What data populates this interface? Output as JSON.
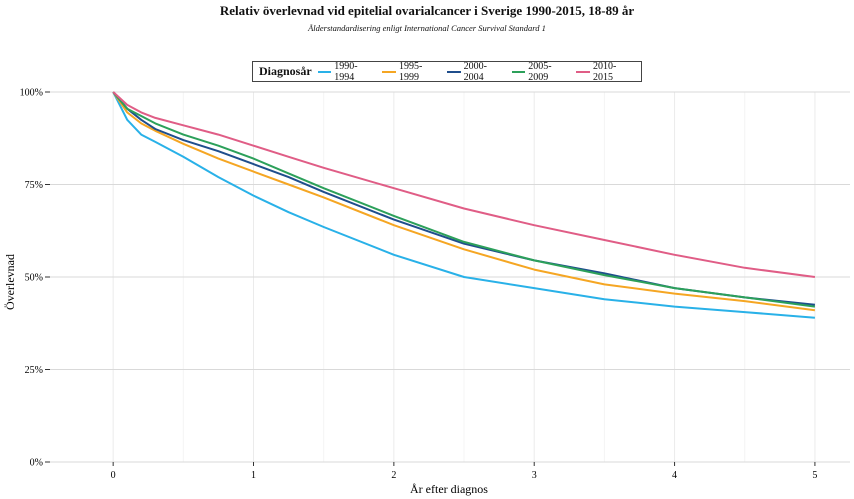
{
  "chart_data": {
    "type": "line",
    "title": "Relativ överlevnad vid epitelial ovarialcancer i Sverige 1990-2015, 18-89 år",
    "subtitle": "Ålderstandardisering enligt International Cancer Survival Standard 1",
    "xlabel": "År efter diagnos",
    "ylabel": "Överlevnad",
    "xlim": [
      -0.45,
      5.25
    ],
    "ylim": [
      0,
      1
    ],
    "x_ticks": [
      0,
      1,
      2,
      3,
      4,
      5
    ],
    "x_tick_labels": [
      "0",
      "1",
      "2",
      "3",
      "4",
      "5"
    ],
    "y_ticks": [
      0,
      0.25,
      0.5,
      0.75,
      1.0
    ],
    "y_tick_labels": [
      "0%",
      "25%",
      "50%",
      "75%",
      "100%"
    ],
    "grid": true,
    "legend_title": "Diagnosår",
    "legend_position": "top",
    "x": [
      0,
      0.1,
      0.2,
      0.3,
      0.5,
      0.75,
      1,
      1.25,
      1.5,
      2,
      2.5,
      3,
      3.5,
      4,
      4.5,
      5
    ],
    "series": [
      {
        "name": "1990-1994",
        "color": "#29b1e8",
        "values": [
          1.0,
          0.925,
          0.885,
          0.865,
          0.825,
          0.77,
          0.72,
          0.675,
          0.635,
          0.56,
          0.5,
          0.47,
          0.44,
          0.42,
          0.405,
          0.39
        ]
      },
      {
        "name": "1995-1999",
        "color": "#f5a623",
        "values": [
          1.0,
          0.945,
          0.915,
          0.895,
          0.86,
          0.82,
          0.785,
          0.75,
          0.715,
          0.64,
          0.575,
          0.52,
          0.48,
          0.455,
          0.435,
          0.41
        ]
      },
      {
        "name": "2000-2004",
        "color": "#1f4e8c",
        "values": [
          1.0,
          0.955,
          0.925,
          0.9,
          0.87,
          0.84,
          0.805,
          0.77,
          0.73,
          0.655,
          0.59,
          0.545,
          0.51,
          0.47,
          0.445,
          0.425
        ]
      },
      {
        "name": "2005-2009",
        "color": "#2ca05a",
        "values": [
          1.0,
          0.955,
          0.935,
          0.915,
          0.885,
          0.855,
          0.82,
          0.78,
          0.74,
          0.665,
          0.595,
          0.545,
          0.505,
          0.47,
          0.445,
          0.42
        ]
      },
      {
        "name": "2010-2015",
        "color": "#e05d86",
        "values": [
          1.0,
          0.965,
          0.945,
          0.93,
          0.91,
          0.885,
          0.855,
          0.825,
          0.795,
          0.74,
          0.685,
          0.64,
          0.6,
          0.56,
          0.525,
          0.5
        ]
      }
    ]
  }
}
